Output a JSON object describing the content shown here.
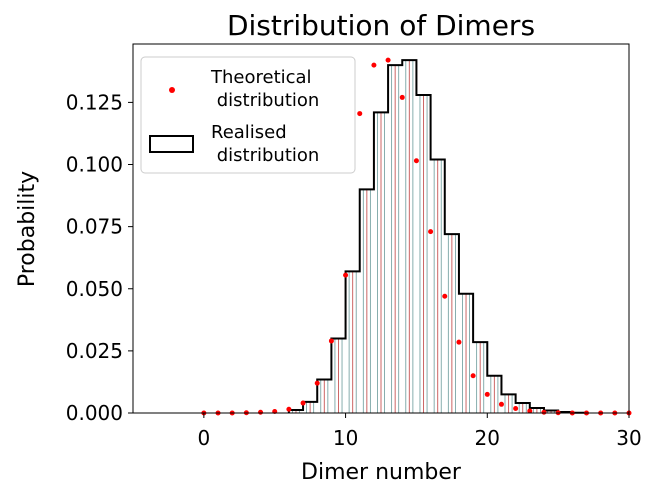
{
  "chart_data": {
    "type": "bar",
    "title": "Distribution of Dimers",
    "xlabel": "Dimer number",
    "ylabel": "Probability",
    "xlim": [
      -5,
      30
    ],
    "ylim": [
      0,
      0.1485
    ],
    "xticks": [
      0,
      10,
      20,
      30
    ],
    "yticks": [
      0.0,
      0.025,
      0.05,
      0.075,
      0.1,
      0.125
    ],
    "ytick_labels": [
      "0.000",
      "0.025",
      "0.050",
      "0.075",
      "0.100",
      "0.125"
    ],
    "xtick_labels": [
      "0",
      "10",
      "20",
      "30"
    ],
    "grid": false,
    "legend_placement": "upper-left",
    "colors": {
      "points": "#ff0000",
      "histogram_edge": "#000000",
      "stem_lines": "#cc6666"
    },
    "series": [
      {
        "name": "Theoretical\n distribution",
        "kind": "scatter",
        "x": [
          0,
          1,
          2,
          3,
          4,
          5,
          6,
          7,
          8,
          9,
          10,
          11,
          12,
          13,
          14,
          15,
          16,
          17,
          18,
          19,
          20,
          21,
          22,
          23,
          24,
          25,
          26,
          27,
          28,
          29,
          30
        ],
        "values": [
          0.0,
          0.0,
          0.0,
          0.0001,
          0.0003,
          0.0006,
          0.0015,
          0.004,
          0.012,
          0.029,
          0.0555,
          0.1205,
          0.14,
          0.142,
          0.127,
          0.1015,
          0.073,
          0.047,
          0.0285,
          0.015,
          0.0075,
          0.0035,
          0.0018,
          0.0008,
          0.0003,
          0.0001,
          0.0,
          0.0,
          0.0,
          0.0,
          0.0
        ]
      },
      {
        "name": "Realised\n distribution",
        "kind": "histogram",
        "bin_edges": [
          6,
          7,
          8,
          9,
          10,
          11,
          12,
          13,
          14,
          15,
          16,
          17,
          18,
          19,
          20,
          21,
          22,
          23,
          24,
          25,
          26,
          27
        ],
        "values": [
          0.0012,
          0.0045,
          0.0135,
          0.03,
          0.057,
          0.09,
          0.121,
          0.14,
          0.142,
          0.128,
          0.102,
          0.072,
          0.048,
          0.0285,
          0.015,
          0.0075,
          0.004,
          0.002,
          0.001,
          0.0004,
          0.0001
        ]
      }
    ]
  }
}
